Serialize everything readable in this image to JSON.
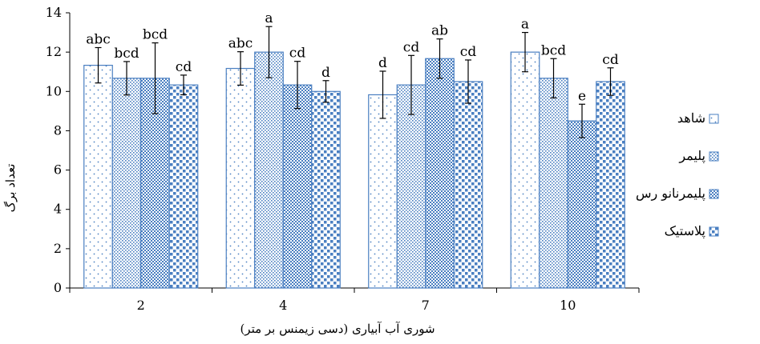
{
  "chart_data": {
    "type": "bar",
    "xlabel": "شوری آب آبیاری (دسی زیمنس بر متر)",
    "ylabel": "تعداد برگ",
    "ylim": [
      0,
      14
    ],
    "yticks": [
      0,
      2,
      4,
      6,
      8,
      10,
      12,
      14
    ],
    "categories": [
      "2",
      "4",
      "7",
      "10"
    ],
    "legend_position": "right",
    "series": [
      {
        "name": "شاهد",
        "pattern": "sparse-dots",
        "values": [
          11.33,
          11.17,
          9.83,
          12.0
        ],
        "errors": [
          0.9,
          0.85,
          1.2,
          1.0
        ],
        "labels": [
          "abc",
          "abc",
          "d",
          "a"
        ]
      },
      {
        "name": "پلیمر",
        "pattern": "dense-dots",
        "values": [
          10.67,
          12.0,
          10.33,
          10.67
        ],
        "errors": [
          0.85,
          1.3,
          1.5,
          1.0
        ],
        "labels": [
          "bcd",
          "a",
          "cd",
          "bcd"
        ]
      },
      {
        "name": "پلیمرنانو رس",
        "pattern": "checker",
        "values": [
          10.67,
          10.33,
          11.67,
          8.5
        ],
        "errors": [
          1.8,
          1.2,
          1.0,
          0.85
        ],
        "labels": [
          "bcd",
          "cd",
          "ab",
          "e"
        ]
      },
      {
        "name": "پلاستیک",
        "pattern": "blocks",
        "values": [
          10.33,
          10.0,
          10.5,
          10.5
        ],
        "errors": [
          0.5,
          0.55,
          1.1,
          0.7
        ],
        "labels": [
          "cd",
          "d",
          "cd",
          "cd"
        ]
      }
    ],
    "colors": {
      "bar_edge": "#4a7fc1",
      "pattern": "#4a7fc1",
      "axis": "#000000"
    }
  }
}
